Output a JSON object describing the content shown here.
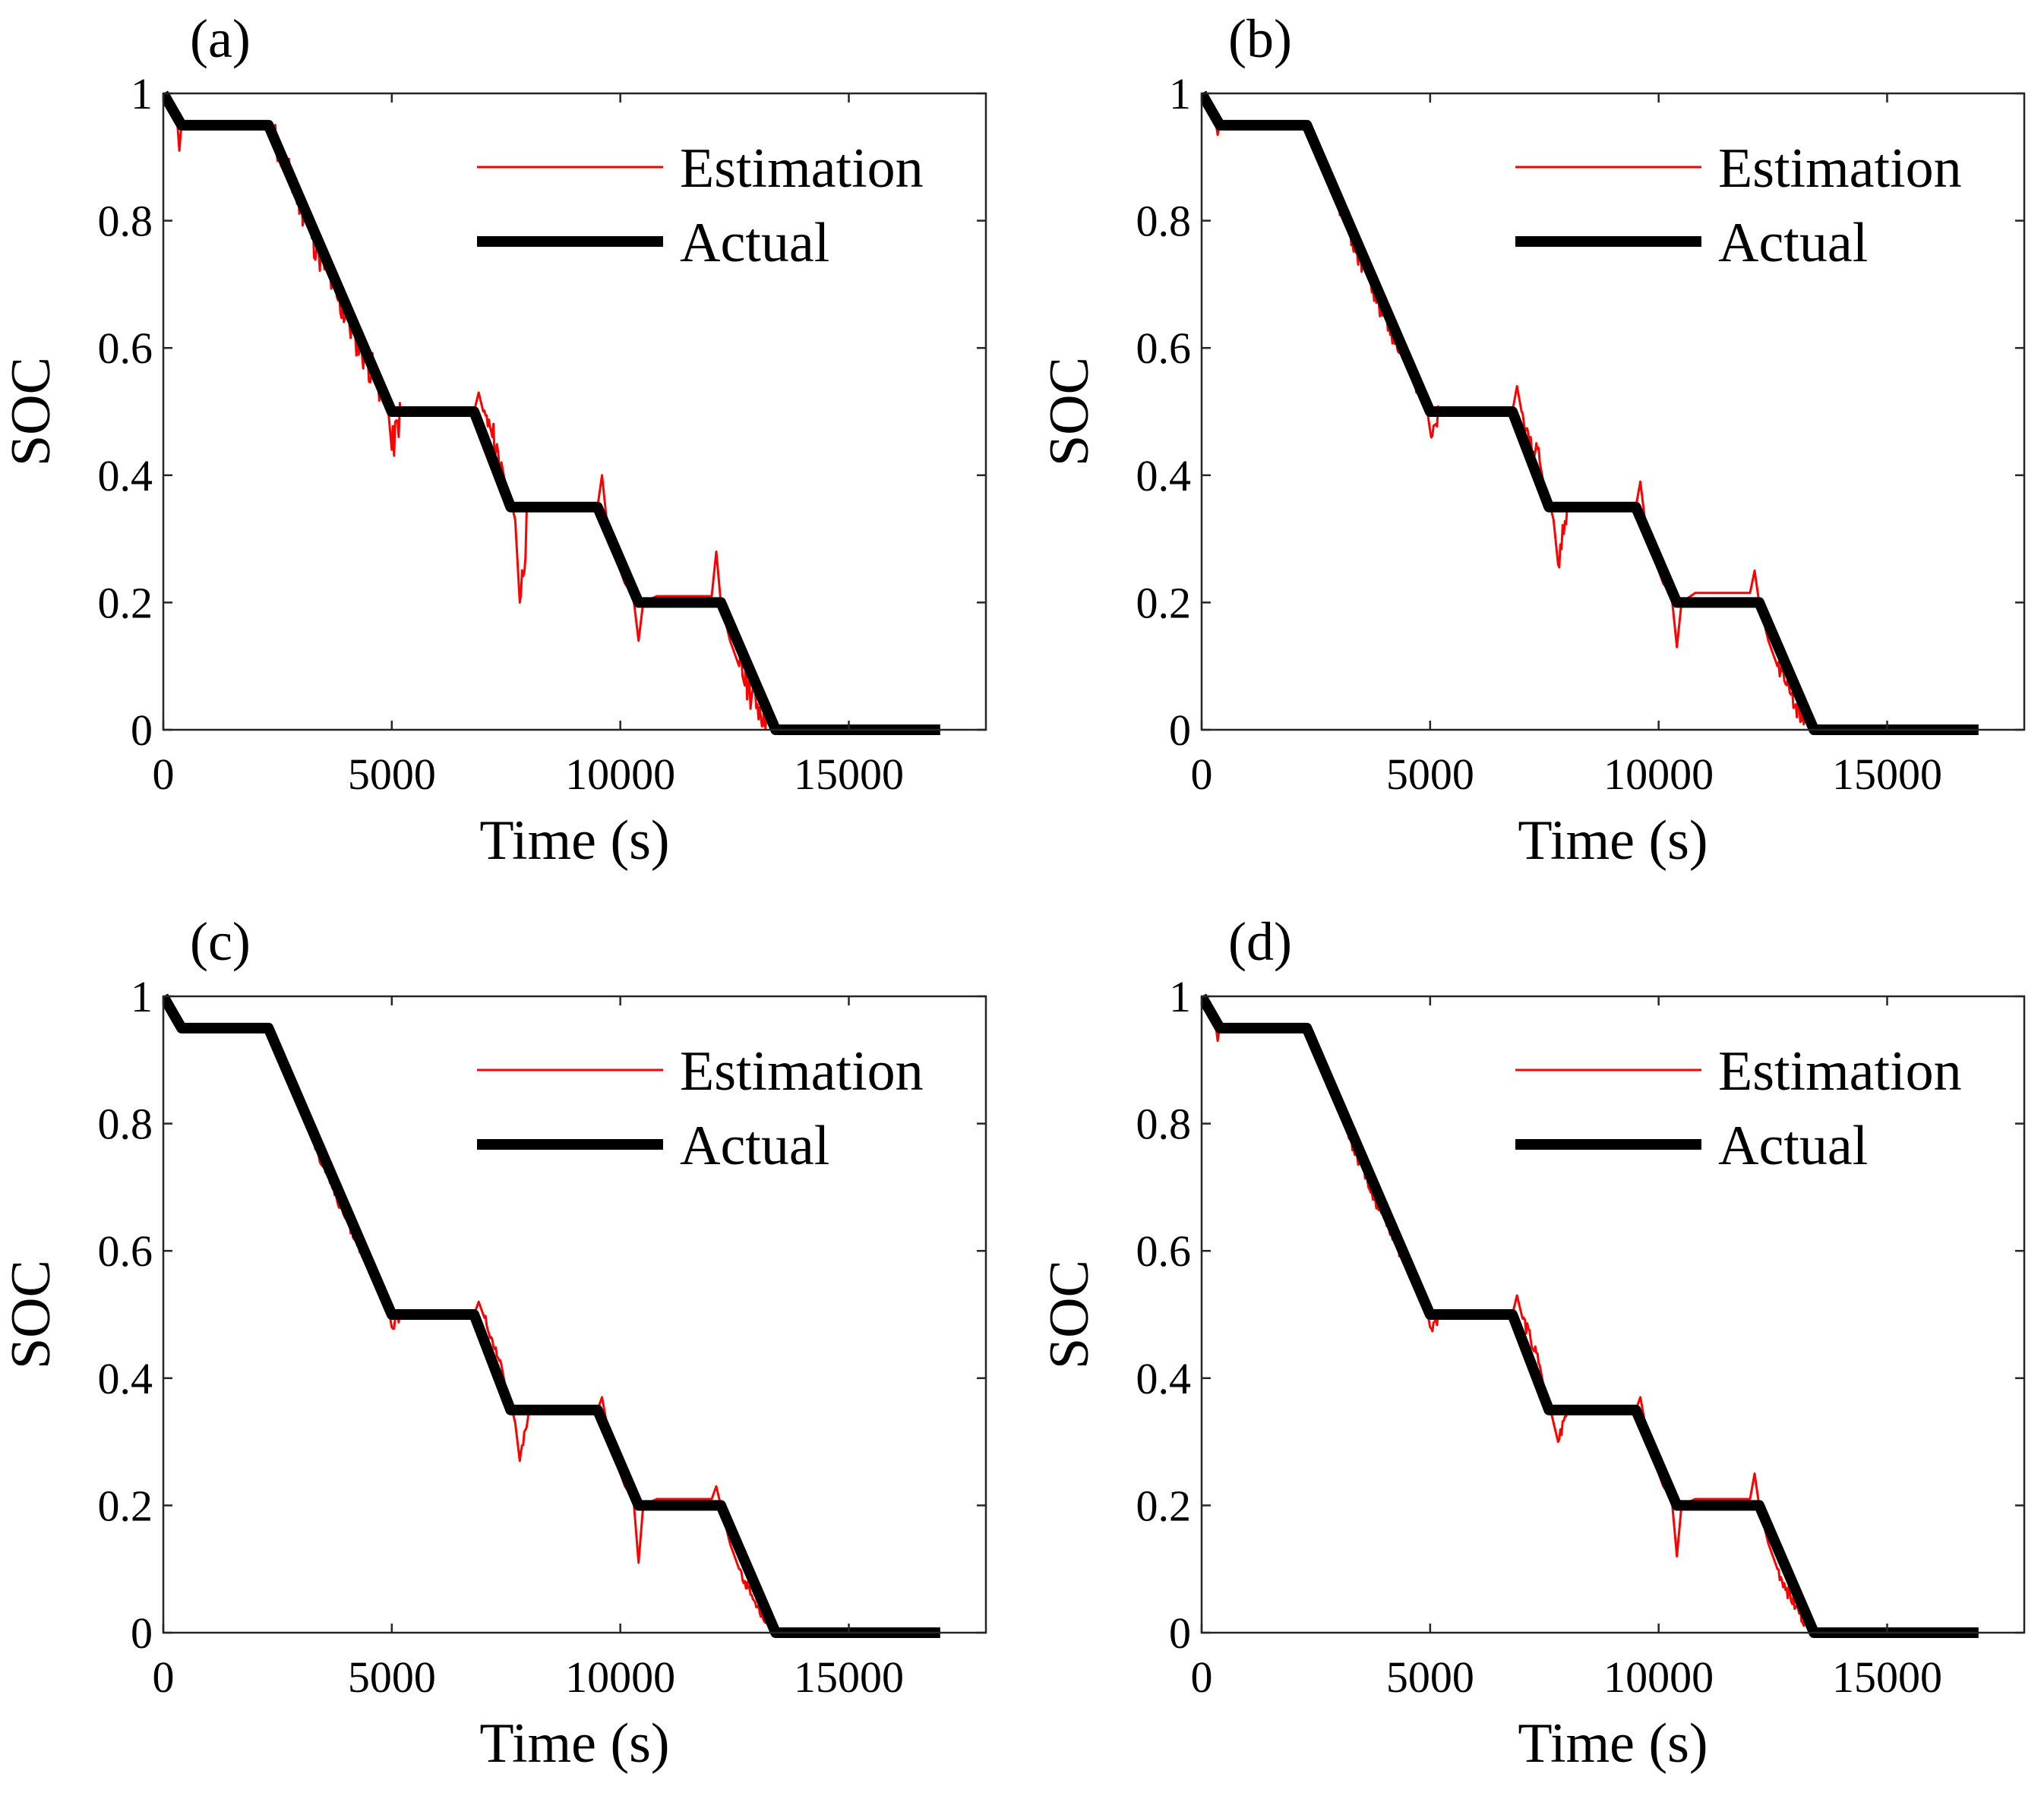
{
  "chart_data": [
    {
      "type": "line",
      "panel": "(a)",
      "xlabel": "Time (s)",
      "ylabel": "SOC",
      "xlim": [
        0,
        18000
      ],
      "ylim": [
        0,
        1
      ],
      "xticks": [
        0,
        5000,
        10000,
        15000
      ],
      "yticks": [
        0,
        0.2,
        0.4,
        0.6,
        0.8,
        1
      ],
      "xtick_labels": [
        "0",
        "5000",
        "10000",
        "15000"
      ],
      "ytick_labels": [
        "0",
        "0.2",
        "0.4",
        "0.6",
        "0.8",
        "1"
      ],
      "legend_position": "top-right",
      "noise": 0.03,
      "series": [
        {
          "name": "Estimation",
          "color": "#ff0000",
          "x": [
            0,
            100,
            200,
            300,
            350,
            400,
            500,
            800,
            1200,
            1600,
            2000,
            2300,
            2400,
            2600,
            2800,
            3000,
            3200,
            3400,
            3600,
            3800,
            4000,
            4200,
            4400,
            4600,
            4800,
            4900,
            5000,
            5200,
            5600,
            6000,
            6400,
            6800,
            6900,
            7000,
            7200,
            7400,
            7500,
            7600,
            7700,
            7800,
            8000,
            8400,
            8800,
            9200,
            9500,
            9600,
            9700,
            9800,
            9900,
            10000,
            10100,
            10200,
            10300,
            10400,
            10500,
            10800,
            11200,
            11600,
            12000,
            12100,
            12200,
            12300,
            12400,
            12500,
            12600,
            12800,
            13000,
            13200,
            13300,
            13400,
            14000,
            15000,
            16000,
            17000
          ],
          "y": [
            1,
            0.99,
            0.975,
            0.96,
            0.91,
            0.955,
            0.95,
            0.95,
            0.95,
            0.95,
            0.95,
            0.95,
            0.935,
            0.9,
            0.86,
            0.83,
            0.79,
            0.75,
            0.72,
            0.68,
            0.65,
            0.62,
            0.59,
            0.56,
            0.53,
            0.52,
            0.44,
            0.5,
            0.5,
            0.5,
            0.5,
            0.5,
            0.53,
            0.5,
            0.46,
            0.42,
            0.38,
            0.36,
            0.33,
            0.2,
            0.35,
            0.35,
            0.35,
            0.35,
            0.35,
            0.4,
            0.33,
            0.3,
            0.27,
            0.25,
            0.23,
            0.22,
            0.2,
            0.14,
            0.2,
            0.21,
            0.21,
            0.21,
            0.21,
            0.28,
            0.2,
            0.17,
            0.14,
            0.12,
            0.1,
            0.07,
            0.04,
            0.02,
            0.01,
            0,
            0,
            0,
            0,
            0
          ]
        },
        {
          "name": "Actual",
          "color": "#000000",
          "x": [
            0,
            400,
            2300,
            5000,
            6800,
            7600,
            9500,
            10400,
            12200,
            13400,
            17000
          ],
          "y": [
            1,
            0.95,
            0.95,
            0.5,
            0.5,
            0.35,
            0.35,
            0.2,
            0.2,
            0,
            0
          ]
        }
      ]
    },
    {
      "type": "line",
      "panel": "(b)",
      "xlabel": "Time (s)",
      "ylabel": "SOC",
      "xlim": [
        0,
        18000
      ],
      "ylim": [
        0,
        1
      ],
      "xticks": [
        0,
        5000,
        10000,
        15000
      ],
      "yticks": [
        0,
        0.2,
        0.4,
        0.6,
        0.8,
        1
      ],
      "xtick_labels": [
        "0",
        "5000",
        "10000",
        "15000"
      ],
      "ytick_labels": [
        "0",
        "0.2",
        "0.4",
        "0.6",
        "0.8",
        "1"
      ],
      "legend_position": "top-right",
      "noise": 0.018,
      "series": [
        {
          "name": "Estimation",
          "color": "#ff0000",
          "x": [
            0,
            100,
            200,
            300,
            350,
            400,
            500,
            800,
            1200,
            1600,
            2000,
            2300,
            2400,
            2600,
            2800,
            3000,
            3200,
            3400,
            3600,
            3800,
            4000,
            4200,
            4400,
            4600,
            4800,
            4900,
            5000,
            5200,
            5600,
            6000,
            6400,
            6800,
            6900,
            7000,
            7200,
            7400,
            7500,
            7600,
            7700,
            7800,
            8000,
            8400,
            8800,
            9200,
            9500,
            9600,
            9700,
            9800,
            9900,
            10000,
            10100,
            10200,
            10300,
            10400,
            10500,
            10800,
            11200,
            11600,
            12000,
            12100,
            12200,
            12300,
            12400,
            12500,
            12600,
            12800,
            13000,
            13200,
            13300,
            13400,
            14000,
            15000,
            16000,
            17000
          ],
          "y": [
            1,
            0.99,
            0.975,
            0.96,
            0.935,
            0.955,
            0.95,
            0.95,
            0.95,
            0.95,
            0.95,
            0.95,
            0.935,
            0.9,
            0.86,
            0.83,
            0.79,
            0.75,
            0.72,
            0.68,
            0.65,
            0.62,
            0.59,
            0.56,
            0.53,
            0.52,
            0.47,
            0.5,
            0.5,
            0.5,
            0.5,
            0.5,
            0.54,
            0.5,
            0.46,
            0.42,
            0.38,
            0.36,
            0.33,
            0.26,
            0.35,
            0.35,
            0.35,
            0.35,
            0.35,
            0.39,
            0.33,
            0.3,
            0.27,
            0.25,
            0.23,
            0.22,
            0.2,
            0.13,
            0.2,
            0.215,
            0.215,
            0.215,
            0.215,
            0.25,
            0.2,
            0.17,
            0.14,
            0.12,
            0.1,
            0.07,
            0.04,
            0.02,
            0.01,
            0,
            0,
            0,
            0,
            0
          ]
        },
        {
          "name": "Actual",
          "color": "#000000",
          "x": [
            0,
            400,
            2300,
            5000,
            6800,
            7600,
            9500,
            10400,
            12200,
            13400,
            17000
          ],
          "y": [
            1,
            0.95,
            0.95,
            0.5,
            0.5,
            0.35,
            0.35,
            0.2,
            0.2,
            0,
            0
          ]
        }
      ]
    },
    {
      "type": "line",
      "panel": "(c)",
      "xlabel": "Time (s)",
      "ylabel": "SOC",
      "xlim": [
        0,
        18000
      ],
      "ylim": [
        0,
        1
      ],
      "xticks": [
        0,
        5000,
        10000,
        15000
      ],
      "yticks": [
        0,
        0.2,
        0.4,
        0.6,
        0.8,
        1
      ],
      "xtick_labels": [
        "0",
        "5000",
        "10000",
        "15000"
      ],
      "ytick_labels": [
        "0",
        "0.2",
        "0.4",
        "0.6",
        "0.8",
        "1"
      ],
      "legend_position": "top-right",
      "noise": 0.008,
      "series": [
        {
          "name": "Estimation",
          "color": "#ff0000",
          "x": [
            0,
            100,
            200,
            300,
            350,
            400,
            500,
            800,
            1200,
            1600,
            2000,
            2300,
            2400,
            2600,
            2800,
            3000,
            3200,
            3400,
            3600,
            3800,
            4000,
            4200,
            4400,
            4600,
            4800,
            4900,
            5000,
            5200,
            5600,
            6000,
            6400,
            6800,
            6900,
            7000,
            7200,
            7400,
            7500,
            7600,
            7700,
            7800,
            8000,
            8400,
            8800,
            9200,
            9500,
            9600,
            9700,
            9800,
            9900,
            10000,
            10100,
            10200,
            10300,
            10400,
            10500,
            10800,
            11200,
            11600,
            12000,
            12100,
            12200,
            12300,
            12400,
            12500,
            12600,
            12800,
            13000,
            13200,
            13300,
            13400,
            14000,
            15000,
            16000,
            17000
          ],
          "y": [
            1,
            0.99,
            0.975,
            0.96,
            0.945,
            0.955,
            0.95,
            0.95,
            0.95,
            0.95,
            0.95,
            0.95,
            0.935,
            0.9,
            0.86,
            0.83,
            0.79,
            0.75,
            0.72,
            0.68,
            0.65,
            0.62,
            0.59,
            0.56,
            0.53,
            0.52,
            0.48,
            0.5,
            0.5,
            0.5,
            0.5,
            0.5,
            0.52,
            0.5,
            0.46,
            0.42,
            0.38,
            0.36,
            0.33,
            0.27,
            0.35,
            0.35,
            0.35,
            0.35,
            0.35,
            0.37,
            0.33,
            0.3,
            0.27,
            0.25,
            0.23,
            0.22,
            0.2,
            0.11,
            0.2,
            0.21,
            0.21,
            0.21,
            0.21,
            0.23,
            0.2,
            0.17,
            0.14,
            0.12,
            0.1,
            0.07,
            0.04,
            0.02,
            0.01,
            0,
            0,
            0,
            0,
            0
          ]
        },
        {
          "name": "Actual",
          "color": "#000000",
          "x": [
            0,
            400,
            2300,
            5000,
            6800,
            7600,
            9500,
            10400,
            12200,
            13400,
            17000
          ],
          "y": [
            1,
            0.95,
            0.95,
            0.5,
            0.5,
            0.35,
            0.35,
            0.2,
            0.2,
            0,
            0
          ]
        }
      ]
    },
    {
      "type": "line",
      "panel": "(d)",
      "xlabel": "Time (s)",
      "ylabel": "SOC",
      "xlim": [
        0,
        18000
      ],
      "ylim": [
        0,
        1
      ],
      "xticks": [
        0,
        5000,
        10000,
        15000
      ],
      "yticks": [
        0,
        0.2,
        0.4,
        0.6,
        0.8,
        1
      ],
      "xtick_labels": [
        "0",
        "5000",
        "10000",
        "15000"
      ],
      "ytick_labels": [
        "0",
        "0.2",
        "0.4",
        "0.6",
        "0.8",
        "1"
      ],
      "legend_position": "top-right",
      "noise": 0.012,
      "series": [
        {
          "name": "Estimation",
          "color": "#ff0000",
          "x": [
            0,
            100,
            200,
            300,
            350,
            400,
            500,
            800,
            1200,
            1600,
            2000,
            2300,
            2400,
            2600,
            2800,
            3000,
            3200,
            3400,
            3600,
            3800,
            4000,
            4200,
            4400,
            4600,
            4800,
            4900,
            5000,
            5200,
            5600,
            6000,
            6400,
            6800,
            6900,
            7000,
            7200,
            7400,
            7500,
            7600,
            7700,
            7800,
            8000,
            8400,
            8800,
            9200,
            9500,
            9600,
            9700,
            9800,
            9900,
            10000,
            10100,
            10200,
            10300,
            10400,
            10500,
            10800,
            11200,
            11600,
            12000,
            12100,
            12200,
            12300,
            12400,
            12500,
            12600,
            12800,
            13000,
            13200,
            13300,
            13400,
            14000,
            15000,
            16000,
            17000
          ],
          "y": [
            1,
            0.99,
            0.975,
            0.96,
            0.93,
            0.955,
            0.95,
            0.95,
            0.95,
            0.95,
            0.95,
            0.95,
            0.935,
            0.9,
            0.86,
            0.83,
            0.79,
            0.75,
            0.72,
            0.68,
            0.65,
            0.62,
            0.59,
            0.56,
            0.53,
            0.52,
            0.48,
            0.5,
            0.5,
            0.5,
            0.5,
            0.5,
            0.53,
            0.5,
            0.46,
            0.42,
            0.38,
            0.36,
            0.33,
            0.3,
            0.35,
            0.35,
            0.35,
            0.35,
            0.35,
            0.37,
            0.33,
            0.3,
            0.27,
            0.25,
            0.23,
            0.22,
            0.2,
            0.12,
            0.2,
            0.21,
            0.21,
            0.21,
            0.21,
            0.25,
            0.2,
            0.17,
            0.14,
            0.12,
            0.1,
            0.07,
            0.04,
            0.02,
            0.01,
            0,
            0,
            0,
            0,
            0
          ]
        },
        {
          "name": "Actual",
          "color": "#000000",
          "x": [
            0,
            400,
            2300,
            5000,
            6800,
            7600,
            9500,
            10400,
            12200,
            13400,
            17000
          ],
          "y": [
            1,
            0.95,
            0.95,
            0.5,
            0.5,
            0.35,
            0.35,
            0.2,
            0.2,
            0,
            0
          ]
        }
      ]
    }
  ]
}
